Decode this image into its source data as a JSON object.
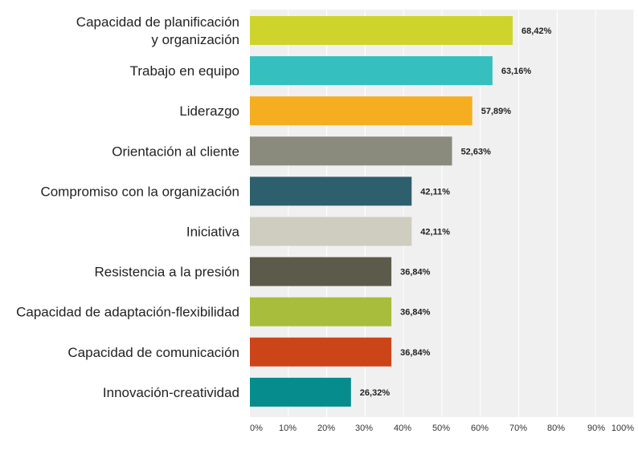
{
  "chart_data": {
    "type": "bar",
    "orientation": "horizontal",
    "categories": [
      [
        "Capacidad de planificación",
        "y organización"
      ],
      [
        "Trabajo en equipo"
      ],
      [
        "Liderazgo"
      ],
      [
        "Orientación al cliente"
      ],
      [
        "Compromiso con la organización"
      ],
      [
        "Iniciativa"
      ],
      [
        "Resistencia a la presión"
      ],
      [
        "Capacidad de adaptación-flexibilidad"
      ],
      [
        "Capacidad de comunicación"
      ],
      [
        "Innovación-creatividad"
      ]
    ],
    "values": [
      68.42,
      63.16,
      57.89,
      52.63,
      42.11,
      42.11,
      36.84,
      36.84,
      36.84,
      26.32
    ],
    "value_labels": [
      "68,42%",
      "63,16%",
      "57,89%",
      "52,63%",
      "42,11%",
      "42,11%",
      "36,84%",
      "36,84%",
      "36,84%",
      "26,32%"
    ],
    "colors": [
      "#cfd42c",
      "#35bfbf",
      "#f5ae20",
      "#8a8b7c",
      "#2d5f6d",
      "#cecdbf",
      "#5c5a4a",
      "#a7bd3b",
      "#cc4519",
      "#068c8c"
    ],
    "x_ticks": [
      "0%",
      "10%",
      "20%",
      "30%",
      "40%",
      "50%",
      "60%",
      "70%",
      "80%",
      "90%",
      "100%"
    ],
    "xlim": [
      0,
      100
    ],
    "grid": true,
    "title": "",
    "xlabel": "",
    "ylabel": "",
    "plot_background": "#f0f0f0",
    "grid_color": "#ffffff"
  }
}
